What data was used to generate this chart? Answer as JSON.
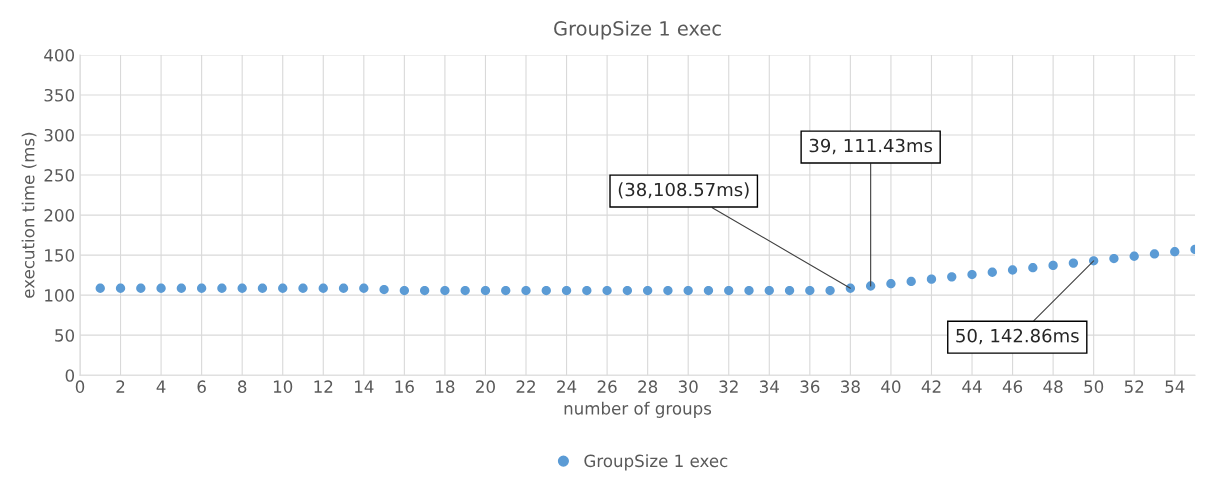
{
  "chart_data": {
    "type": "scatter",
    "title": "GroupSize 1 exec",
    "xlabel": "number of groups",
    "ylabel": "execution time (ms)",
    "x": [
      1,
      2,
      3,
      4,
      5,
      6,
      7,
      8,
      9,
      10,
      11,
      12,
      13,
      14,
      15,
      16,
      17,
      18,
      19,
      20,
      21,
      22,
      23,
      24,
      25,
      26,
      27,
      28,
      29,
      30,
      31,
      32,
      33,
      34,
      35,
      36,
      37,
      38,
      39,
      40,
      41,
      42,
      43,
      44,
      45,
      46,
      47,
      48,
      49,
      50,
      51,
      52,
      53,
      54,
      55
    ],
    "series": [
      {
        "name": "GroupSize 1 exec",
        "color": "#5b9bd5",
        "values": [
          108.57,
          108.57,
          108.57,
          108.57,
          108.57,
          108.57,
          108.57,
          108.57,
          108.57,
          108.57,
          108.57,
          108.57,
          108.57,
          108.57,
          107,
          105.71,
          105.71,
          105.71,
          105.71,
          105.71,
          105.71,
          105.71,
          105.71,
          105.71,
          105.71,
          105.71,
          105.71,
          105.71,
          105.71,
          105.71,
          105.71,
          105.71,
          105.71,
          105.71,
          105.71,
          105.71,
          105.71,
          108.57,
          111.43,
          114.29,
          117.14,
          120,
          122.86,
          125.71,
          128.57,
          131.43,
          134.29,
          137.14,
          140,
          142.86,
          145.71,
          148.57,
          151.43,
          154.29,
          157.14
        ]
      }
    ],
    "xlim": [
      0,
      55
    ],
    "xticks": [
      0,
      2,
      4,
      6,
      8,
      10,
      12,
      14,
      16,
      18,
      20,
      22,
      24,
      26,
      28,
      30,
      32,
      34,
      36,
      38,
      40,
      42,
      44,
      46,
      48,
      50,
      52,
      54
    ],
    "ylim": [
      0,
      400
    ],
    "yticks": [
      0,
      50,
      100,
      150,
      200,
      250,
      300,
      350,
      400
    ],
    "grid": true,
    "legend": "bottom",
    "marker": "circle",
    "annotations": [
      {
        "text": "(38,108.57ms)",
        "x": 38,
        "y": 108.57
      },
      {
        "text": "39, 111.43ms",
        "x": 39,
        "y": 111.43
      },
      {
        "text": "50, 142.86ms",
        "x": 50,
        "y": 142.86
      }
    ]
  }
}
